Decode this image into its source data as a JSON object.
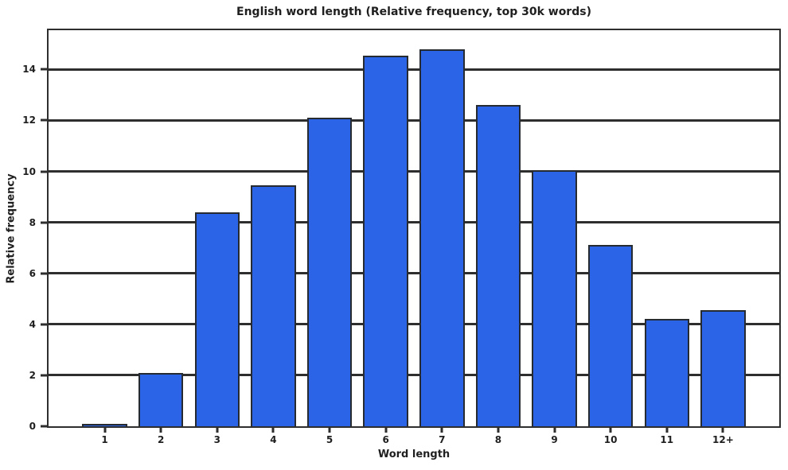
{
  "chart_data": {
    "type": "bar",
    "title": "English word length (Relative frequency, top 30k words)",
    "xlabel": "Word length",
    "ylabel": "Relative frequency",
    "categories": [
      "1",
      "2",
      "3",
      "4",
      "5",
      "6",
      "7",
      "8",
      "9",
      "10",
      "11",
      "12+"
    ],
    "values": [
      0.1,
      2.1,
      8.4,
      9.45,
      12.1,
      14.55,
      14.8,
      12.6,
      10.05,
      7.1,
      4.2,
      4.55
    ],
    "yticks": [
      0,
      2,
      4,
      6,
      8,
      10,
      12,
      14
    ],
    "ylim": [
      0,
      15.54
    ],
    "grid": "horizontal-behind-bars",
    "legend": "none",
    "bar_color": "#2c64e8",
    "bar_edge_color": "#262b31",
    "axis_color": "#2e2e2e",
    "background_color": "#ffffff"
  }
}
